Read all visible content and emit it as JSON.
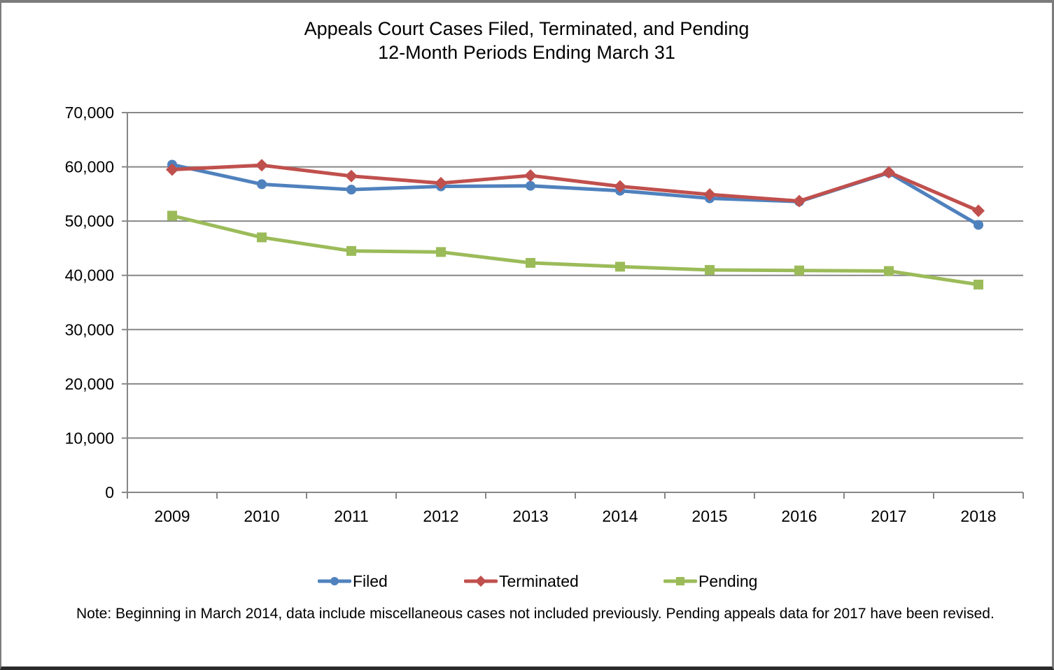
{
  "page": {
    "note": "Note: Beginning in March 2014, data include miscellaneous cases not included previously. Pending appeals data for 2017 have been revised."
  },
  "chart_data": {
    "type": "line",
    "title": "Appeals Court Cases Filed, Terminated, and Pending",
    "subtitle": "12-Month Periods Ending March 31",
    "xlabel": "",
    "ylabel": "",
    "categories": [
      "2009",
      "2010",
      "2011",
      "2012",
      "2013",
      "2014",
      "2015",
      "2016",
      "2017",
      "2018"
    ],
    "series": [
      {
        "name": "Filed",
        "marker": "circle",
        "color": "#4F81BD",
        "values": [
          60400,
          56800,
          55800,
          56400,
          56500,
          55600,
          54200,
          53600,
          58900,
          49300
        ]
      },
      {
        "name": "Terminated",
        "marker": "diamond",
        "color": "#C0504D",
        "values": [
          59500,
          60300,
          58300,
          57000,
          58400,
          56400,
          54900,
          53700,
          59000,
          51900
        ]
      },
      {
        "name": "Pending",
        "marker": "square",
        "color": "#9BBB59",
        "values": [
          51000,
          47000,
          44500,
          44300,
          42300,
          41600,
          41000,
          40900,
          40800,
          38300
        ]
      }
    ],
    "ylim": [
      0,
      70000
    ],
    "ytick_interval": 10000,
    "ytick_labels": [
      "0",
      "10,000",
      "20,000",
      "30,000",
      "40,000",
      "50,000",
      "60,000",
      "70,000"
    ],
    "grid": "horizontal",
    "grid_color": "#878787",
    "axis_color": "#878787",
    "legend_position": "bottom"
  }
}
